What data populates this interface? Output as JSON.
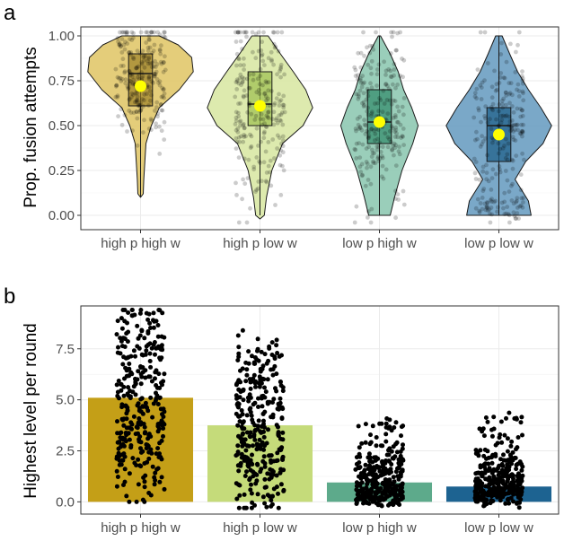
{
  "panels": {
    "a": {
      "letter": "a"
    },
    "b": {
      "letter": "b"
    }
  },
  "chart_data": [
    {
      "type": "violin",
      "panel": "a",
      "xlabel": "",
      "ylabel": "Prop. fusion attempts",
      "ylim": [
        -0.08,
        1.05
      ],
      "yticks": [
        0.0,
        0.25,
        0.5,
        0.75,
        1.0
      ],
      "ytick_labels": [
        "0.00",
        "0.25",
        "0.50",
        "0.75",
        "1.00"
      ],
      "categories": [
        "high p high w",
        "high p low w",
        "low p high w",
        "low p low w"
      ],
      "colors": [
        "#e1c86b",
        "#d9e8a5",
        "#8fc9b2",
        "#6c9fc2"
      ],
      "box_colors": [
        "#9c8228",
        "#9dbf4f",
        "#2f8a6a",
        "#1b5d86"
      ],
      "mean_color": "#ffff00",
      "grid": true,
      "groups": [
        {
          "category": "high p high w",
          "mean": 0.72,
          "q1": 0.61,
          "median": 0.79,
          "q3": 0.9,
          "whisker_low": 0.1,
          "whisker_high": 1.0,
          "min": 0.1,
          "max": 1.0
        },
        {
          "category": "high p low w",
          "mean": 0.61,
          "q1": 0.5,
          "median": 0.62,
          "q3": 0.8,
          "whisker_low": 0.0,
          "whisker_high": 1.0,
          "min": -0.02,
          "max": 1.0
        },
        {
          "category": "low p high w",
          "mean": 0.52,
          "q1": 0.4,
          "median": 0.52,
          "q3": 0.7,
          "whisker_low": 0.0,
          "whisker_high": 1.0,
          "min": 0.0,
          "max": 1.0
        },
        {
          "category": "low p low w",
          "mean": 0.45,
          "q1": 0.3,
          "median": 0.5,
          "q3": 0.6,
          "whisker_low": 0.0,
          "whisker_high": 1.0,
          "min": 0.0,
          "max": 1.0
        }
      ]
    },
    {
      "type": "bar",
      "panel": "b",
      "xlabel": "",
      "ylabel": "Highest level per round",
      "ylim": [
        -0.6,
        9.6
      ],
      "yticks": [
        0.0,
        2.5,
        5.0,
        7.5
      ],
      "ytick_labels": [
        "0.0",
        "2.5",
        "5.0",
        "7.5"
      ],
      "categories": [
        "high p high w",
        "high p low w",
        "low p high w",
        "low p low w"
      ],
      "values": [
        5.1,
        3.75,
        0.95,
        0.75
      ],
      "colors": [
        "#c49f17",
        "#c5db7a",
        "#5daa8b",
        "#1d6391"
      ],
      "point_ranges": [
        [
          0,
          9.4
        ],
        [
          -0.3,
          8.4
        ],
        [
          -0.3,
          4.2
        ],
        [
          -0.3,
          4.4
        ]
      ],
      "grid": true
    }
  ]
}
